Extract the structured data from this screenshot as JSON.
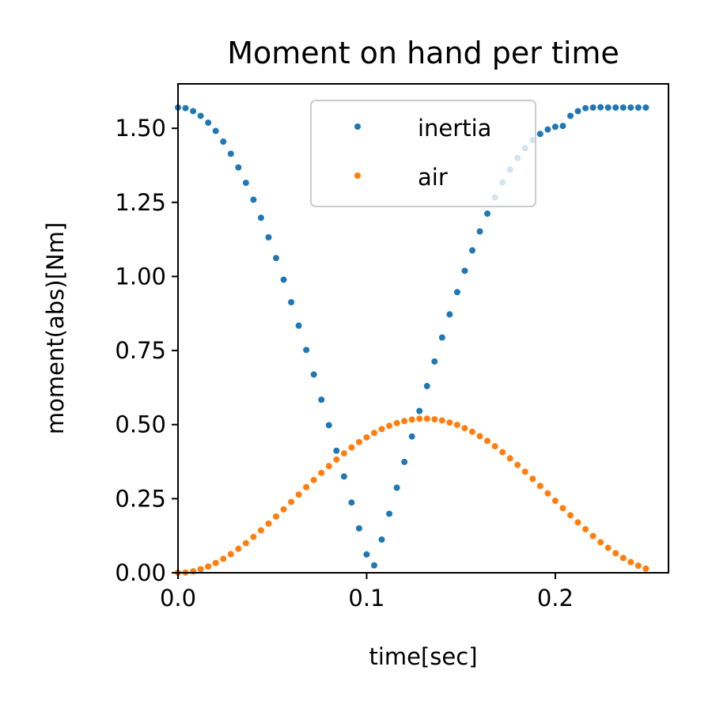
{
  "chart_data": {
    "type": "scatter",
    "title": "Moment on hand per time",
    "xlabel": "time[sec]",
    "ylabel": "moment(abs)[Nm]",
    "xlim": [
      0.0,
      0.26
    ],
    "ylim": [
      0.0,
      1.65
    ],
    "xticks": [
      0.0,
      0.1,
      0.2
    ],
    "xtick_labels": [
      "0.0",
      "0.1",
      "0.2"
    ],
    "yticks": [
      0.0,
      0.25,
      0.5,
      0.75,
      1.0,
      1.25,
      1.5
    ],
    "ytick_labels": [
      "0.00",
      "0.25",
      "0.50",
      "0.75",
      "1.00",
      "1.25",
      "1.50"
    ],
    "grid": false,
    "legend_position": "upper-center",
    "series": [
      {
        "name": "inertia",
        "color": "#1f77b4",
        "x": [
          0.0,
          0.004,
          0.008,
          0.012,
          0.016,
          0.02,
          0.024,
          0.028,
          0.032,
          0.036,
          0.04,
          0.044,
          0.048,
          0.052,
          0.056,
          0.06,
          0.064,
          0.068,
          0.072,
          0.076,
          0.08,
          0.084,
          0.088,
          0.092,
          0.096,
          0.1,
          0.104,
          0.108,
          0.112,
          0.116,
          0.12,
          0.124,
          0.128,
          0.132,
          0.136,
          0.14,
          0.144,
          0.148,
          0.152,
          0.156,
          0.16,
          0.164,
          0.168,
          0.172,
          0.176,
          0.18,
          0.184,
          0.188,
          0.192,
          0.196,
          0.2,
          0.204,
          0.208,
          0.212,
          0.216,
          0.22,
          0.224,
          0.228,
          0.232,
          0.236,
          0.24,
          0.244,
          0.248
        ],
        "y": [
          1.57,
          1.568,
          1.558,
          1.542,
          1.519,
          1.491,
          1.455,
          1.414,
          1.368,
          1.316,
          1.259,
          1.198,
          1.132,
          1.062,
          0.989,
          0.913,
          0.834,
          0.752,
          0.669,
          0.584,
          0.498,
          0.412,
          0.325,
          0.237,
          0.15,
          0.062,
          0.025,
          0.112,
          0.199,
          0.287,
          0.374,
          0.46,
          0.546,
          0.63,
          0.713,
          0.794,
          0.872,
          0.947,
          1.019,
          1.088,
          1.152,
          1.212,
          1.267,
          1.317,
          1.361,
          1.4,
          1.433,
          1.46,
          1.481,
          1.496,
          1.505,
          1.508,
          1.542,
          1.558,
          1.568,
          1.57,
          1.571,
          1.57,
          1.57,
          1.57,
          1.57,
          1.57,
          1.57
        ]
      },
      {
        "name": "air",
        "color": "#ff7f0e",
        "x": [
          0.0,
          0.004,
          0.008,
          0.012,
          0.016,
          0.02,
          0.024,
          0.028,
          0.032,
          0.036,
          0.04,
          0.044,
          0.048,
          0.052,
          0.056,
          0.06,
          0.064,
          0.068,
          0.072,
          0.076,
          0.08,
          0.084,
          0.088,
          0.092,
          0.096,
          0.1,
          0.104,
          0.108,
          0.112,
          0.116,
          0.12,
          0.124,
          0.128,
          0.132,
          0.136,
          0.14,
          0.144,
          0.148,
          0.152,
          0.156,
          0.16,
          0.164,
          0.168,
          0.172,
          0.176,
          0.18,
          0.184,
          0.188,
          0.192,
          0.196,
          0.2,
          0.204,
          0.208,
          0.212,
          0.216,
          0.22,
          0.224,
          0.228,
          0.232,
          0.236,
          0.24,
          0.244,
          0.248
        ],
        "y": [
          0.0,
          0.001,
          0.005,
          0.012,
          0.021,
          0.033,
          0.047,
          0.063,
          0.081,
          0.1,
          0.121,
          0.143,
          0.166,
          0.19,
          0.214,
          0.239,
          0.264,
          0.289,
          0.313,
          0.337,
          0.36,
          0.382,
          0.403,
          0.423,
          0.441,
          0.457,
          0.472,
          0.485,
          0.496,
          0.505,
          0.512,
          0.517,
          0.52,
          0.52,
          0.518,
          0.514,
          0.507,
          0.499,
          0.488,
          0.476,
          0.461,
          0.445,
          0.427,
          0.407,
          0.386,
          0.364,
          0.341,
          0.317,
          0.293,
          0.268,
          0.243,
          0.218,
          0.194,
          0.17,
          0.147,
          0.124,
          0.103,
          0.084,
          0.066,
          0.05,
          0.036,
          0.024,
          0.014
        ]
      }
    ]
  }
}
